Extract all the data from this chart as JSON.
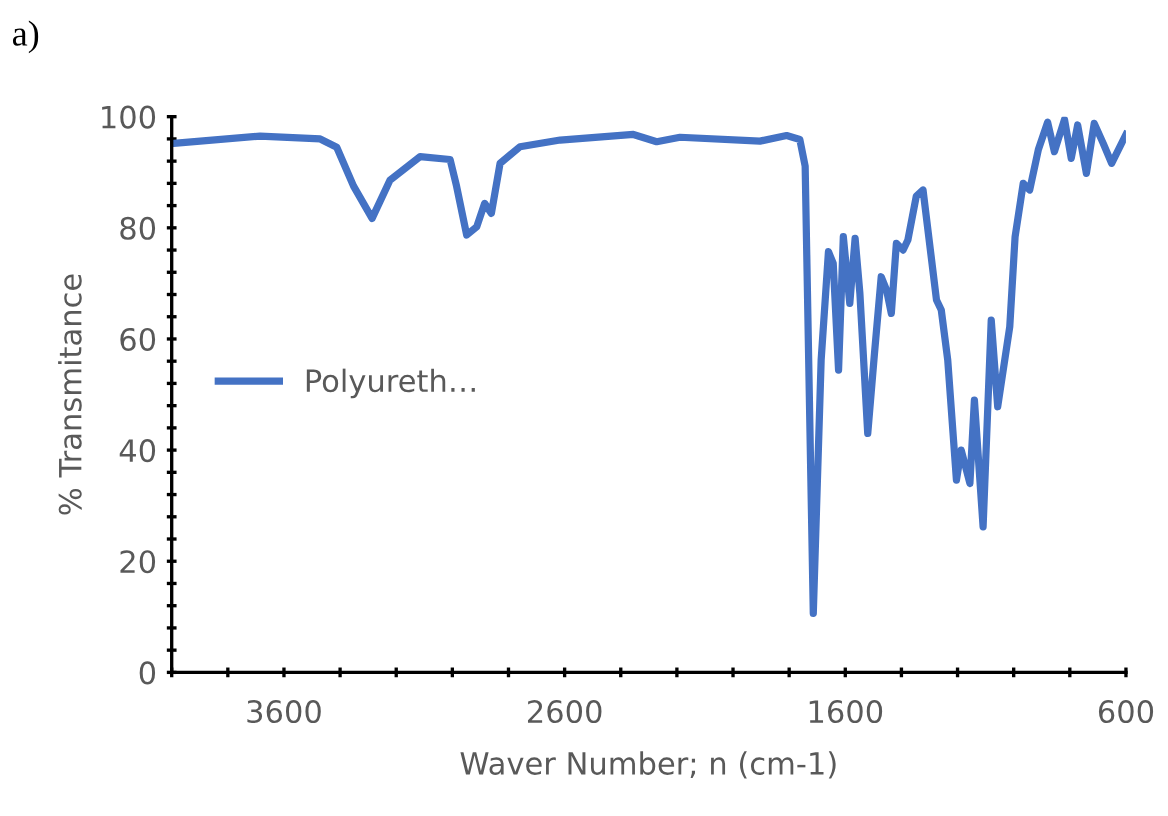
{
  "chart_data": {
    "type": "line",
    "title": "a)",
    "xlabel": "Waver Number; n (cm-1)",
    "ylabel": "% Transmitance",
    "legend": "left",
    "grid": false,
    "marker": "none",
    "line_style": "solid",
    "xlim": [
      4000,
      600
    ],
    "ylim": [
      0,
      100
    ],
    "xticks": [
      {
        "value": 4000,
        "label": null
      },
      {
        "value": 3800,
        "label": null
      },
      3600,
      {
        "value": 3400,
        "label": null
      },
      {
        "value": 3200,
        "label": null
      },
      {
        "value": 3000,
        "label": null
      },
      {
        "value": 2800,
        "label": null
      },
      2600,
      {
        "value": 2400,
        "label": null
      },
      {
        "value": 2200,
        "label": null
      },
      {
        "value": 2000,
        "label": null
      },
      {
        "value": 1800,
        "label": null
      },
      1600,
      {
        "value": 1400,
        "label": null
      },
      {
        "value": 1200,
        "label": null
      },
      {
        "value": 1000,
        "label": null
      },
      {
        "value": 800,
        "label": null
      },
      600
    ],
    "yticks": [
      0,
      {
        "value": 4,
        "label": null
      },
      {
        "value": 8,
        "label": null
      },
      {
        "value": 12,
        "label": null
      },
      {
        "value": 16,
        "label": null
      },
      20,
      {
        "value": 24,
        "label": null
      },
      {
        "value": 28,
        "label": null
      },
      {
        "value": 32,
        "label": null
      },
      {
        "value": 36,
        "label": null
      },
      40,
      {
        "value": 44,
        "label": null
      },
      {
        "value": 48,
        "label": null
      },
      {
        "value": 52,
        "label": null
      },
      {
        "value": 56,
        "label": null
      },
      60,
      {
        "value": 64,
        "label": null
      },
      {
        "value": 68,
        "label": null
      },
      {
        "value": 72,
        "label": null
      },
      {
        "value": 76,
        "label": null
      },
      80,
      {
        "value": 84,
        "label": null
      },
      {
        "value": 88,
        "label": null
      },
      {
        "value": 92,
        "label": null
      },
      {
        "value": 96,
        "label": null
      },
      100
    ],
    "series": [
      {
        "name": "Polyureth…",
        "color": "#4472c4",
        "x": [
          3993,
          3685,
          3471,
          3412,
          3352,
          3286,
          3222,
          3115,
          3008,
          2985,
          2949,
          2913,
          2885,
          2861,
          2830,
          2759,
          2616,
          2355,
          2272,
          2189,
          1904,
          1809,
          1762,
          1743,
          1714,
          1686,
          1660,
          1643,
          1624,
          1607,
          1584,
          1565,
          1548,
          1520,
          1496,
          1472,
          1453,
          1436,
          1418,
          1394,
          1377,
          1347,
          1323,
          1275,
          1258,
          1235,
          1204,
          1187,
          1156,
          1140,
          1109,
          1080,
          1057,
          1014,
          995,
          966,
          943,
          912,
          879,
          855,
          819,
          795,
          772,
          741,
          713,
          681,
          651,
          600
        ],
        "values": [
          95.2,
          96.5,
          96,
          94.5,
          87.5,
          81.7,
          88.6,
          92.8,
          92.3,
          87.5,
          78.7,
          80.2,
          84.4,
          82.6,
          91.6,
          94.6,
          95.8,
          96.8,
          95.5,
          96.3,
          95.6,
          96.6,
          95.9,
          91.1,
          10.6,
          56.2,
          75.7,
          73.6,
          54.4,
          78.4,
          66.4,
          78.1,
          68.2,
          43,
          57.4,
          71.2,
          68.8,
          64.6,
          77.2,
          76,
          77.8,
          85.7,
          86.8,
          67,
          65.2,
          56.2,
          34.6,
          40,
          34,
          49,
          26.2,
          63.4,
          47.8,
          62.2,
          78.4,
          88,
          86.8,
          94.1,
          99,
          93.7,
          99.5,
          92.5,
          98.5,
          89.8,
          98.8,
          95.2,
          91.6,
          96.8
        ]
      }
    ]
  }
}
